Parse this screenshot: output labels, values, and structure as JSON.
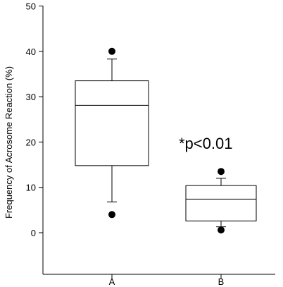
{
  "chart_data": {
    "type": "box",
    "ylabel": "Frequency of Acrosome Reaction (%)",
    "xlabel": "",
    "ylim": [
      0,
      50
    ],
    "yticks": [
      0,
      10,
      20,
      30,
      40,
      50
    ],
    "categories": [
      "A",
      "B"
    ],
    "boxes": [
      {
        "label": "A",
        "whisker_low": 6.8,
        "q1": 14.8,
        "median": 28.1,
        "q3": 33.5,
        "whisker_high": 38.3,
        "outliers": [
          40.0,
          4.0
        ]
      },
      {
        "label": "B",
        "whisker_low": 1.3,
        "q1": 2.6,
        "median": 7.4,
        "q3": 10.4,
        "whisker_high": 12.0,
        "outliers": [
          13.5,
          0.6
        ]
      }
    ],
    "annotation": "*p<0.01",
    "grid": false
  }
}
